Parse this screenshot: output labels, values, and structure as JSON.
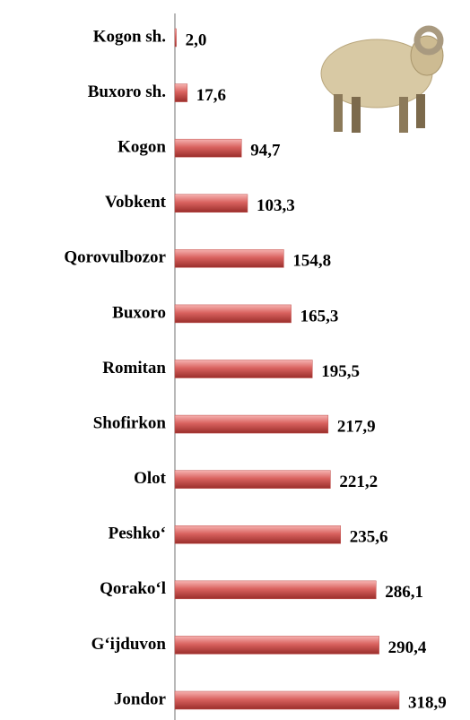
{
  "chart_data": {
    "type": "bar",
    "orientation": "horizontal",
    "categories": [
      "Kogon sh.",
      "Buxoro sh.",
      "Kogon",
      "Vobkent",
      "Qorovulbozor",
      "Buxoro",
      "Romitan",
      "Shofirkon",
      "Olot",
      "Peshko‘",
      "Qorako‘l",
      "G‘ijduvon",
      "Jondor"
    ],
    "values": [
      2.0,
      17.6,
      94.7,
      103.3,
      154.8,
      165.3,
      195.5,
      217.9,
      221.2,
      235.6,
      286.1,
      290.4,
      318.9
    ],
    "value_labels": [
      "2,0",
      "17,6",
      "94,7",
      "103,3",
      "154,8",
      "165,3",
      "195,5",
      "217,9",
      "221,2",
      "235,6",
      "286,1",
      "290,4",
      "318,9"
    ],
    "color": "#c0504d"
  }
}
